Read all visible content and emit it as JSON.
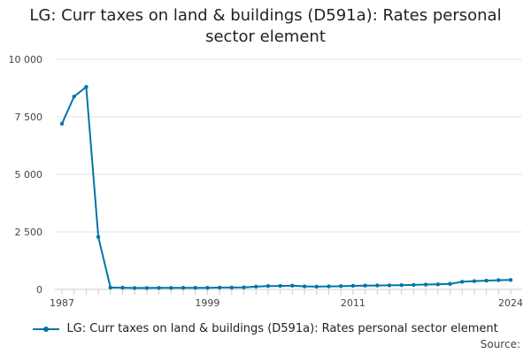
{
  "chart_data": {
    "type": "line",
    "title_lines": [
      "LG: Curr taxes on land & buildings (D591a): Rates personal",
      "sector element"
    ],
    "xlabel": "",
    "ylabel": "",
    "x": [
      1987,
      1988,
      1989,
      1990,
      1991,
      1992,
      1993,
      1994,
      1995,
      1996,
      1997,
      1998,
      1999,
      2000,
      2001,
      2002,
      2003,
      2004,
      2005,
      2006,
      2007,
      2008,
      2009,
      2010,
      2011,
      2012,
      2013,
      2014,
      2015,
      2016,
      2017,
      2018,
      2019,
      2020,
      2021,
      2022,
      2023,
      2024
    ],
    "series": [
      {
        "name": "LG: Curr taxes on land & buildings (D591a): Rates personal sector element",
        "color": "#0075a8",
        "values": [
          7200,
          8380,
          8800,
          2280,
          80,
          75,
          60,
          60,
          65,
          65,
          70,
          70,
          70,
          80,
          80,
          90,
          120,
          145,
          150,
          160,
          130,
          120,
          130,
          140,
          155,
          165,
          170,
          175,
          185,
          195,
          210,
          220,
          240,
          330,
          360,
          380,
          400,
          410
        ]
      }
    ],
    "ylim": [
      0,
      10000
    ],
    "yticks": [
      0,
      2500,
      5000,
      7500,
      10000
    ],
    "ytick_labels": [
      "0",
      "2 500",
      "5 000",
      "7 500",
      "10 000"
    ],
    "xtick_labels": [
      {
        "year": 1987,
        "label": "1987"
      },
      {
        "year": 1999,
        "label": "1999"
      },
      {
        "year": 2011,
        "label": "2011"
      },
      {
        "year": 2024,
        "label": "2024"
      }
    ],
    "xlim": [
      1987,
      2024
    ],
    "grid": "horizontal",
    "legend_position": "bottom",
    "source_label": "Source:"
  }
}
